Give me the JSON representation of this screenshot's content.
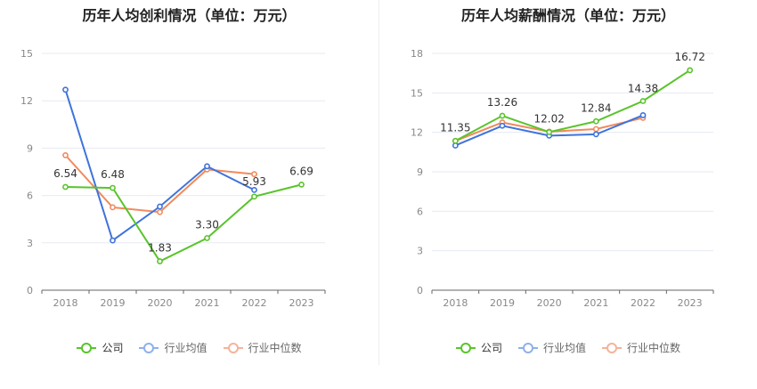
{
  "colors": {
    "company": "#59c42b",
    "avg": "#3f73dc",
    "median": "#f08a5d"
  },
  "chart_data": [
    {
      "type": "line",
      "title": "历年人均创利情况（单位：万元）",
      "categories": [
        "2018",
        "2019",
        "2020",
        "2021",
        "2022",
        "2023"
      ],
      "yticks": [
        "0",
        "3",
        "6",
        "9",
        "12",
        "15"
      ],
      "ylim": [
        0,
        15
      ],
      "series": [
        {
          "name": "公司",
          "values": [
            6.54,
            6.48,
            1.83,
            3.3,
            5.93,
            6.69
          ],
          "labels": [
            "6.54",
            "6.48",
            "1.83",
            "3.30",
            "5.93",
            "6.69"
          ]
        },
        {
          "name": "行业均值",
          "values": [
            12.7,
            3.15,
            5.3,
            7.85,
            6.35,
            null
          ]
        },
        {
          "name": "行业中位数",
          "values": [
            8.55,
            5.25,
            4.95,
            7.65,
            7.35,
            null
          ]
        }
      ],
      "grid": true,
      "legend_position": "bottom"
    },
    {
      "type": "line",
      "title": "历年人均薪酬情况（单位：万元）",
      "categories": [
        "2018",
        "2019",
        "2020",
        "2021",
        "2022",
        "2023"
      ],
      "yticks": [
        "0",
        "3",
        "6",
        "9",
        "12",
        "15",
        "18"
      ],
      "ylim": [
        0,
        18
      ],
      "series": [
        {
          "name": "公司",
          "values": [
            11.35,
            13.26,
            12.02,
            12.84,
            14.38,
            16.72
          ],
          "labels": [
            "11.35",
            "13.26",
            "12.02",
            "12.84",
            "14.38",
            "16.72"
          ]
        },
        {
          "name": "行业均值",
          "values": [
            11.0,
            12.5,
            11.75,
            11.85,
            13.3,
            null
          ]
        },
        {
          "name": "行业中位数",
          "values": [
            11.35,
            12.75,
            12.05,
            12.25,
            13.1,
            null
          ]
        }
      ],
      "grid": true,
      "legend_position": "bottom"
    }
  ],
  "legend": [
    {
      "name": "公司",
      "color": "#59c42b"
    },
    {
      "name": "行业均值",
      "color": "#8fb0ea"
    },
    {
      "name": "行业中位数",
      "color": "#f5b39a"
    }
  ]
}
